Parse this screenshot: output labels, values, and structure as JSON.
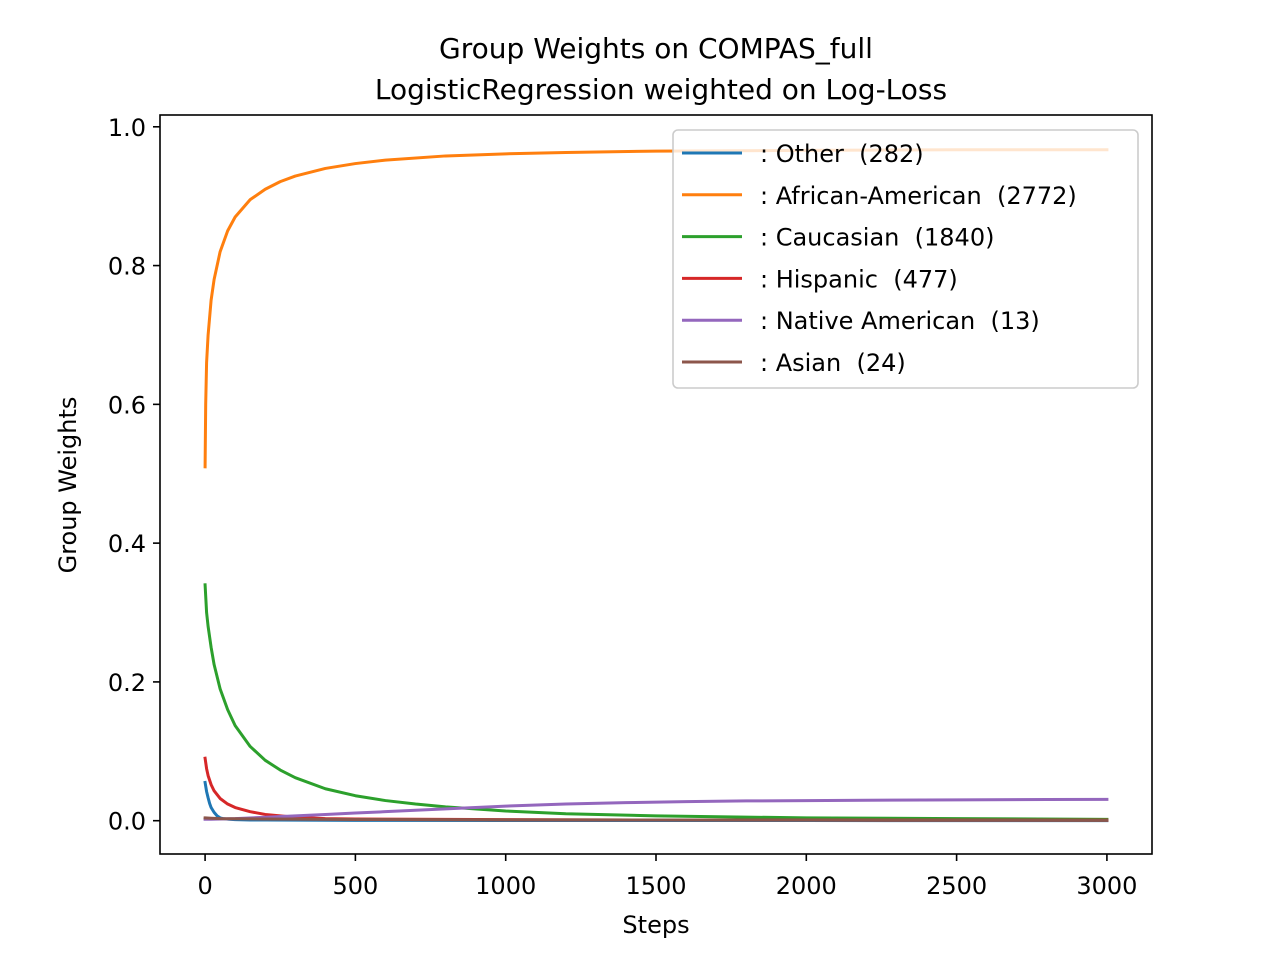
{
  "chart_data": {
    "type": "line",
    "title": "Group Weights on COMPAS_full",
    "subtitle": "LogisticRegression weighted on Log-Loss",
    "xlabel": "Steps",
    "ylabel": "Group Weights",
    "xlim": [
      -150,
      3150
    ],
    "ylim": [
      -0.048,
      1.017
    ],
    "xticks": [
      0,
      500,
      1000,
      1500,
      2000,
      2500,
      3000
    ],
    "xtick_labels": [
      "0",
      "500",
      "1000",
      "1500",
      "2000",
      "2500",
      "3000"
    ],
    "yticks": [
      0.0,
      0.2,
      0.4,
      0.6,
      0.8,
      1.0
    ],
    "ytick_labels": [
      "0.0",
      "0.2",
      "0.4",
      "0.6",
      "0.8",
      "1.0"
    ],
    "grid": false,
    "legend_position": "top-right",
    "series": [
      {
        "name": ": Other  (282)",
        "color": "#1f77b4",
        "x": [
          0,
          5,
          10,
          15,
          20,
          30,
          40,
          50,
          60,
          80,
          100,
          150,
          200,
          300,
          500,
          1000,
          1500,
          2000,
          2500,
          3000
        ],
        "y": [
          0.055,
          0.042,
          0.033,
          0.025,
          0.019,
          0.012,
          0.007,
          0.004,
          0.003,
          0.002,
          0.0015,
          0.001,
          0.001,
          0.0008,
          0.0005,
          0.0003,
          0.0002,
          0.0002,
          0.0001,
          0.0001
        ]
      },
      {
        "name": ": African-American  (2772)",
        "color": "#ff7f0e",
        "x": [
          0,
          2,
          5,
          10,
          20,
          30,
          50,
          75,
          100,
          150,
          200,
          250,
          300,
          400,
          500,
          600,
          800,
          1000,
          1200,
          1500,
          2000,
          2500,
          3000
        ],
        "y": [
          0.51,
          0.6,
          0.66,
          0.7,
          0.75,
          0.78,
          0.82,
          0.85,
          0.87,
          0.895,
          0.91,
          0.921,
          0.929,
          0.94,
          0.947,
          0.952,
          0.958,
          0.961,
          0.963,
          0.965,
          0.966,
          0.967,
          0.967
        ]
      },
      {
        "name": ": Caucasian  (1840)",
        "color": "#2ca02c",
        "x": [
          0,
          5,
          10,
          20,
          30,
          50,
          75,
          100,
          150,
          200,
          250,
          300,
          400,
          500,
          600,
          700,
          800,
          1000,
          1200,
          1500,
          2000,
          2500,
          3000
        ],
        "y": [
          0.34,
          0.3,
          0.28,
          0.25,
          0.225,
          0.19,
          0.16,
          0.137,
          0.107,
          0.087,
          0.073,
          0.062,
          0.046,
          0.036,
          0.029,
          0.024,
          0.02,
          0.014,
          0.01,
          0.007,
          0.004,
          0.003,
          0.002
        ]
      },
      {
        "name": ": Hispanic  (477)",
        "color": "#d62728",
        "x": [
          0,
          5,
          10,
          20,
          30,
          50,
          75,
          100,
          150,
          200,
          300,
          400,
          500,
          700,
          1000,
          1500,
          2000,
          2500,
          3000
        ],
        "y": [
          0.09,
          0.075,
          0.065,
          0.052,
          0.043,
          0.032,
          0.024,
          0.019,
          0.013,
          0.009,
          0.005,
          0.003,
          0.0025,
          0.002,
          0.0015,
          0.001,
          0.001,
          0.0008,
          0.0008
        ]
      },
      {
        "name": ": Native American  (13)",
        "color": "#9467bd",
        "x": [
          0,
          20,
          50,
          100,
          200,
          300,
          400,
          500,
          600,
          700,
          800,
          900,
          1000,
          1200,
          1400,
          1600,
          1800,
          2000,
          2200,
          2500,
          2800,
          3000
        ],
        "y": [
          0.002,
          0.002,
          0.0025,
          0.003,
          0.005,
          0.007,
          0.009,
          0.011,
          0.013,
          0.015,
          0.017,
          0.019,
          0.021,
          0.024,
          0.026,
          0.0275,
          0.0285,
          0.029,
          0.0295,
          0.03,
          0.0305,
          0.0308
        ]
      },
      {
        "name": ": Asian  (24)",
        "color": "#8c564b",
        "x": [
          0,
          20,
          50,
          100,
          200,
          300,
          500,
          700,
          1000,
          1500,
          2000,
          2500,
          3000
        ],
        "y": [
          0.004,
          0.0035,
          0.003,
          0.0028,
          0.0025,
          0.0022,
          0.0018,
          0.0015,
          0.0012,
          0.001,
          0.0008,
          0.0006,
          0.0005
        ]
      }
    ]
  }
}
